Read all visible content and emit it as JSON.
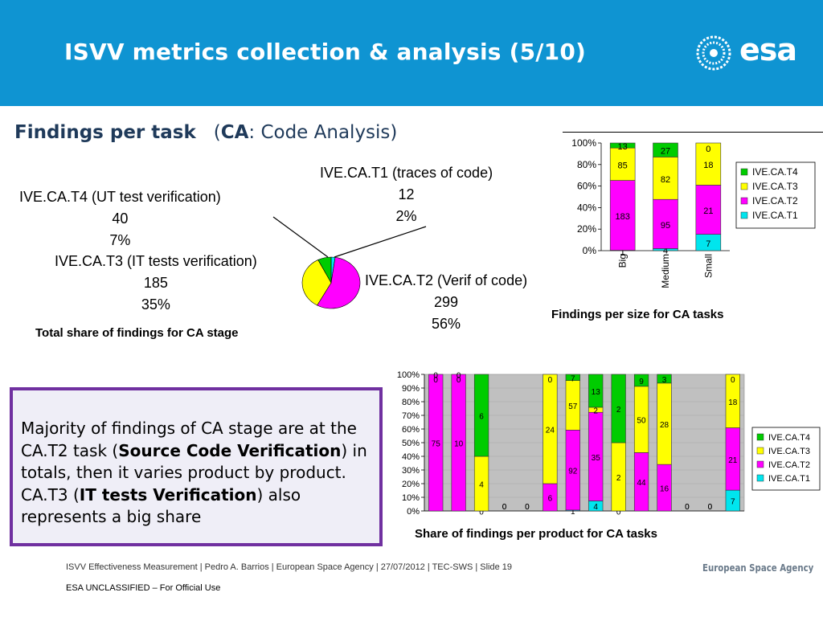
{
  "header": {
    "title": "ISVV metrics collection & analysis  (5/10)",
    "logo_text": "esa",
    "color": "#0f94d2"
  },
  "subtitle": {
    "bold": "Findings per task",
    "paren_open": "(",
    "abbr": "CA",
    "rest": ": Code Analysis)"
  },
  "colors": {
    "T4": "#00cc00",
    "T3": "#ffff00",
    "T2": "#ff00ff",
    "T1": "#00e5ee",
    "frame": "#7030a0"
  },
  "pie": {
    "caption": "Total share of findings for CA stage",
    "slices": [
      {
        "name": "IVE.CA.T1 (traces of code)",
        "value": "12",
        "pct": "2%"
      },
      {
        "name": "IVE.CA.T2 (Verif of code)",
        "value": "299",
        "pct": "56%"
      },
      {
        "name": "IVE.CA.T3 (IT tests verification)",
        "value": "185",
        "pct": "35%"
      },
      {
        "name": "IVE.CA.T4 (UT test verification)",
        "value": "40",
        "pct": "7%"
      }
    ]
  },
  "chart_data": [
    {
      "type": "pie",
      "title": "",
      "categories": [
        "IVE.CA.T1 (traces of code)",
        "IVE.CA.T2 (Verif of code)",
        "IVE.CA.T3 (IT tests verification)",
        "IVE.CA.T4 (UT test verification)"
      ],
      "values": [
        12,
        299,
        185,
        40
      ],
      "percent_labels": [
        "2%",
        "56%",
        "35%",
        "7%"
      ]
    },
    {
      "type": "bar",
      "stacked": "100%",
      "caption": "Findings per size for CA tasks",
      "categories": [
        "Big",
        "Medium",
        "Small"
      ],
      "ylim": [
        "0%",
        "100%"
      ],
      "yticks": [
        "0%",
        "20%",
        "40%",
        "60%",
        "80%",
        "100%"
      ],
      "legend_position": "right",
      "series": [
        {
          "name": "IVE.CA.T1",
          "values": [
            1,
            4,
            7
          ]
        },
        {
          "name": "IVE.CA.T2",
          "values": [
            183,
            95,
            21
          ]
        },
        {
          "name": "IVE.CA.T3",
          "values": [
            85,
            82,
            18
          ]
        },
        {
          "name": "IVE.CA.T4",
          "values": [
            13,
            27,
            0
          ]
        }
      ]
    },
    {
      "type": "bar",
      "stacked": "100%",
      "caption": "Share of findings per product for CA tasks",
      "categories": [
        "",
        "",
        "",
        "",
        "",
        "",
        "",
        "",
        "",
        "",
        "",
        "",
        "",
        ""
      ],
      "ylim": [
        "0%",
        "100%"
      ],
      "yticks": [
        "0%",
        "10%",
        "20%",
        "30%",
        "40%",
        "50%",
        "60%",
        "70%",
        "80%",
        "90%",
        "100%"
      ],
      "legend_position": "right",
      "series": [
        {
          "name": "IVE.CA.T1",
          "values": [
            0,
            0,
            0,
            0,
            0,
            0,
            1,
            4,
            0,
            0,
            0,
            0,
            0,
            7
          ]
        },
        {
          "name": "IVE.CA.T2",
          "values": [
            75,
            10,
            0,
            0,
            0,
            6,
            92,
            35,
            0,
            44,
            16,
            0,
            0,
            21
          ]
        },
        {
          "name": "IVE.CA.T3",
          "values": [
            0,
            0,
            4,
            0,
            0,
            24,
            57,
            2,
            2,
            50,
            28,
            0,
            0,
            18
          ]
        },
        {
          "name": "IVE.CA.T4",
          "values": [
            0,
            0,
            6,
            0,
            0,
            0,
            7,
            13,
            2,
            9,
            3,
            0,
            0,
            0
          ]
        }
      ]
    }
  ],
  "summary": {
    "p1": "Majority of findings of CA stage are at the CA.T2 task (",
    "b1": "Source Code Verification",
    "p2": ") in totals, then it varies product by product. CA.T3 (",
    "b2": "IT tests Verification",
    "p3": ") also represents a big share"
  },
  "footer": {
    "text": "ISVV Effectiveness Measurement | Pedro A. Barrios | European Space Agency | 27/07/2012 | TEC-SWS | Slide  19",
    "classification": "ESA UNCLASSIFIED – For Official Use",
    "agency": "European Space Agency"
  }
}
